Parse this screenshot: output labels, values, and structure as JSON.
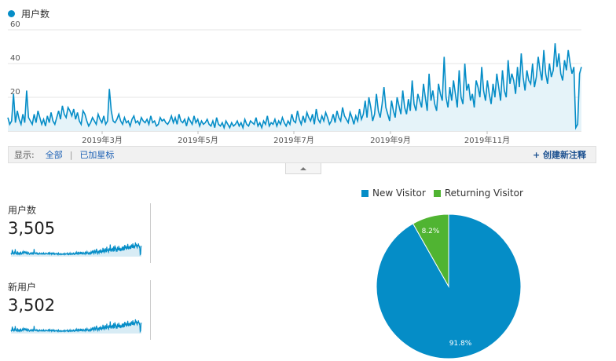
{
  "chart": {
    "metric_label": "用户数",
    "y_ticks": [
      "60",
      "40",
      "20"
    ],
    "x_labels": [
      "2019年3月",
      "2019年5月",
      "2019年7月",
      "2019年9月",
      "2019年11月"
    ]
  },
  "annotations": {
    "show_label": "显示:",
    "all": "全部",
    "separator": "|",
    "starred": "已加星标",
    "create": "+ 创建新注释"
  },
  "metrics": [
    {
      "label": "用户数",
      "value": "3,505"
    },
    {
      "label": "新用户",
      "value": "3,502"
    }
  ],
  "colors": {
    "primary": "#058dc7",
    "returning": "#50b432",
    "area": "#e5f3f9"
  },
  "chart_data": [
    {
      "type": "line",
      "title": "",
      "series": [
        {
          "name": "用户数",
          "values": [
            8,
            4,
            6,
            22,
            5,
            12,
            7,
            4,
            10,
            5,
            24,
            8,
            6,
            4,
            10,
            5,
            12,
            8,
            4,
            7,
            3,
            9,
            5,
            11,
            6,
            4,
            8,
            12,
            7,
            15,
            10,
            8,
            14,
            12,
            9,
            13,
            7,
            11,
            6,
            4,
            12,
            10,
            6,
            3,
            5,
            8,
            6,
            4,
            10,
            7,
            5,
            9,
            4,
            6,
            25,
            12,
            6,
            5,
            7,
            10,
            6,
            4,
            8,
            5,
            6,
            3,
            7,
            9,
            5,
            6,
            4,
            8,
            6,
            5,
            7,
            4,
            9,
            5,
            6,
            3,
            4,
            8,
            6,
            7,
            5,
            4,
            6,
            9,
            5,
            8,
            4,
            10,
            6,
            5,
            7,
            3,
            8,
            6,
            4,
            9,
            5,
            7,
            3,
            6,
            4,
            5,
            7,
            4,
            3,
            6,
            2,
            8,
            4,
            3,
            5,
            2,
            6,
            4,
            2,
            5,
            3,
            4,
            6,
            3,
            5,
            2,
            7,
            4,
            3,
            6,
            5,
            4,
            8,
            3,
            5,
            2,
            6,
            4,
            9,
            3,
            5,
            4,
            7,
            3,
            6,
            4,
            8,
            5,
            3,
            6,
            4,
            10,
            6,
            5,
            12,
            7,
            4,
            9,
            5,
            11,
            8,
            6,
            10,
            4,
            13,
            7,
            5,
            9,
            6,
            11,
            8,
            4,
            6,
            10,
            5,
            12,
            8,
            6,
            14,
            9,
            7,
            5,
            11,
            8,
            4,
            9,
            6,
            13,
            7,
            10,
            18,
            8,
            20,
            14,
            6,
            10,
            22,
            12,
            8,
            16,
            26,
            14,
            10,
            6,
            18,
            12,
            8,
            20,
            15,
            10,
            24,
            14,
            10,
            19,
            12,
            30,
            16,
            12,
            22,
            18,
            14,
            28,
            20,
            12,
            34,
            18,
            24,
            16,
            12,
            28,
            22,
            18,
            44,
            20,
            14,
            26,
            18,
            30,
            22,
            14,
            36,
            20,
            16,
            40,
            24,
            28,
            18,
            22,
            14,
            30,
            26,
            20,
            38,
            24,
            18,
            30,
            22,
            16,
            28,
            20,
            34,
            26,
            18,
            36,
            24,
            20,
            42,
            28,
            34,
            30,
            22,
            38,
            26,
            46,
            32,
            24,
            36,
            30,
            28,
            40,
            26,
            32,
            44,
            36,
            30,
            48,
            34,
            28,
            40,
            32,
            36,
            52,
            38,
            46,
            34,
            30,
            42,
            36,
            48,
            40,
            34,
            38,
            2,
            4,
            34,
            38
          ]
        }
      ],
      "ylim": [
        0,
        60
      ],
      "x_tick_labels": [
        "2019年3月",
        "2019年5月",
        "2019年7月",
        "2019年9月",
        "2019年11月"
      ]
    },
    {
      "type": "pie",
      "categories": [
        "New Visitor",
        "Returning Visitor"
      ],
      "values": [
        91.8,
        8.2
      ],
      "labels": [
        "91.8%",
        "8.2%"
      ],
      "colors": [
        "#058dc7",
        "#50b432"
      ]
    }
  ]
}
